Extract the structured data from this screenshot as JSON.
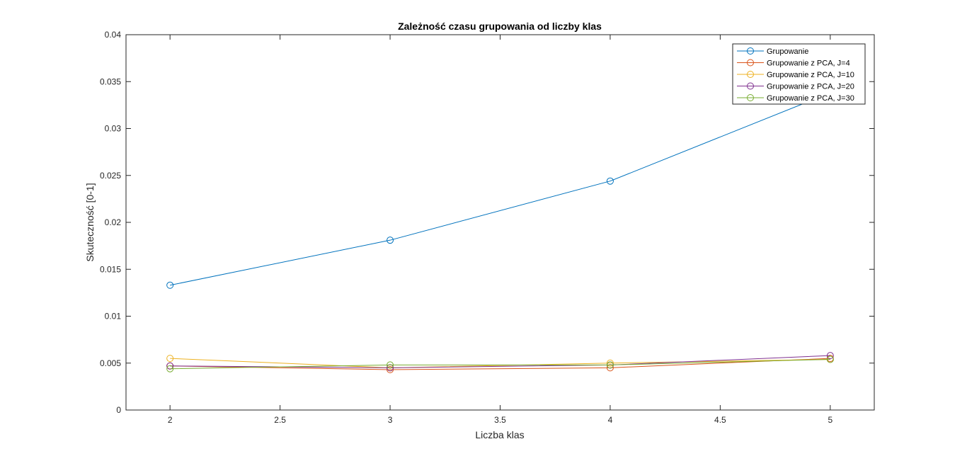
{
  "chart_data": {
    "type": "line",
    "title": "Zależność czasu grupowania od liczby klas",
    "xlabel": "Liczba klas",
    "ylabel": "Skuteczność [0-1]",
    "xlim": [
      1.8,
      5.2
    ],
    "ylim": [
      0,
      0.04
    ],
    "xticks": [
      2,
      2.5,
      3,
      3.5,
      4,
      4.5,
      5
    ],
    "xtick_labels": [
      "2",
      "2.5",
      "3",
      "3.5",
      "4",
      "4.5",
      "5"
    ],
    "yticks": [
      0,
      0.005,
      0.01,
      0.015,
      0.02,
      0.025,
      0.03,
      0.035,
      0.04
    ],
    "ytick_labels": [
      "0",
      "0.005",
      "0.01",
      "0.015",
      "0.02",
      "0.025",
      "0.03",
      "0.035",
      "0.04"
    ],
    "grid": false,
    "legend_position": "top-right",
    "x": [
      2,
      3,
      4,
      5
    ],
    "series": [
      {
        "name": "Grupowanie",
        "color": "#0072BD",
        "values": [
          0.0133,
          0.0181,
          0.0244,
          0.0338
        ]
      },
      {
        "name": "Grupowanie z PCA, J=4",
        "color": "#D95319",
        "values": [
          0.0047,
          0.0043,
          0.0045,
          0.0055
        ]
      },
      {
        "name": "Grupowanie z PCA, J=10",
        "color": "#EDB120",
        "values": [
          0.0055,
          0.0045,
          0.005,
          0.0054
        ]
      },
      {
        "name": "Grupowanie z PCA, J=20",
        "color": "#7E2F8E",
        "values": [
          0.0047,
          0.0045,
          0.0048,
          0.0058
        ]
      },
      {
        "name": "Grupowanie z PCA, J=30",
        "color": "#77AC30",
        "values": [
          0.0044,
          0.0048,
          0.0048,
          0.0054
        ]
      }
    ]
  }
}
